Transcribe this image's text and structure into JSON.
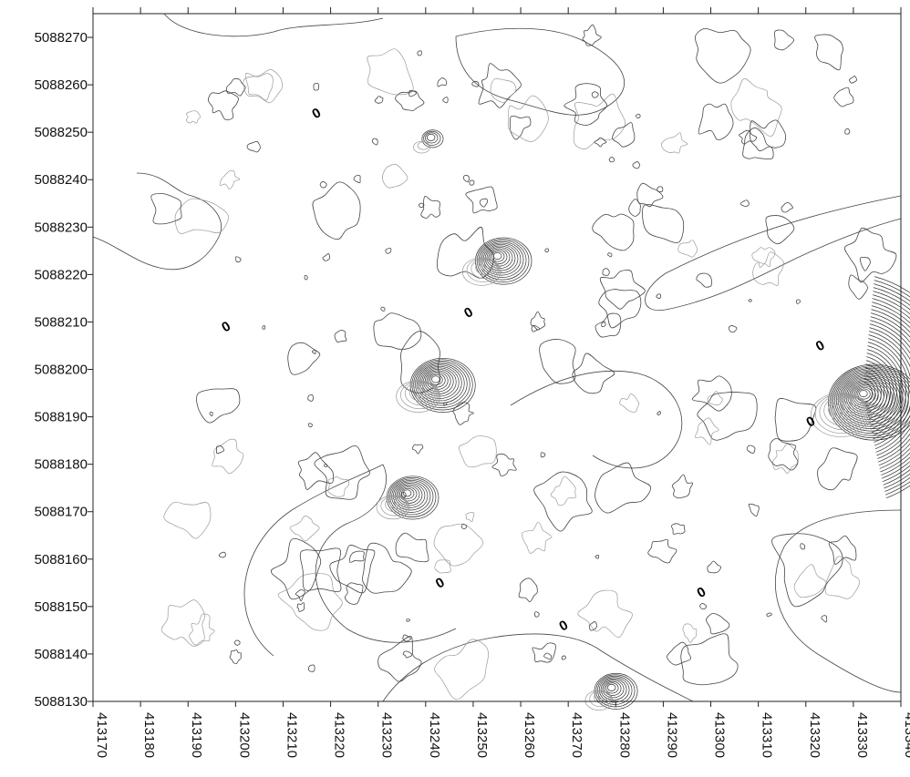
{
  "chart_data": {
    "type": "contour",
    "title": "",
    "xlabel": "",
    "ylabel": "",
    "xlim": [
      413170,
      413340
    ],
    "ylim": [
      5088130,
      5088275
    ],
    "x_ticks": [
      "413170",
      "413180",
      "413190",
      "413200",
      "413210",
      "413220",
      "413230",
      "413240",
      "413250",
      "413260",
      "413270",
      "413280",
      "413290",
      "413300",
      "413310",
      "413320",
      "413330",
      "413340"
    ],
    "y_ticks": [
      "5088270",
      "5088260",
      "5088250",
      "5088240",
      "5088230",
      "5088220",
      "5088210",
      "5088200",
      "5088190",
      "5088180",
      "5088170",
      "5088160",
      "5088150",
      "5088140",
      "5088130"
    ],
    "contour_labels": [
      {
        "text": "0",
        "x": 413217,
        "y": 5088254
      },
      {
        "text": "0",
        "x": 413198,
        "y": 5088209
      },
      {
        "text": "0",
        "x": 413249,
        "y": 5088212
      },
      {
        "text": "0",
        "x": 413323,
        "y": 5088205
      },
      {
        "text": "0",
        "x": 413321,
        "y": 5088189
      },
      {
        "text": "0",
        "x": 413243,
        "y": 5088155
      },
      {
        "text": "0",
        "x": 413269,
        "y": 5088146
      },
      {
        "text": "0",
        "x": 413298,
        "y": 5088153
      }
    ],
    "anomalies": [
      {
        "x": 413242,
        "y": 5088198,
        "rings": 14
      },
      {
        "x": 413255,
        "y": 5088224,
        "rings": 12
      },
      {
        "x": 413236,
        "y": 5088174,
        "rings": 11
      },
      {
        "x": 413332,
        "y": 5088195,
        "rings": 20
      },
      {
        "x": 413279,
        "y": 5088133,
        "rings": 9
      },
      {
        "x": 413241,
        "y": 5088249,
        "rings": 4
      }
    ]
  }
}
